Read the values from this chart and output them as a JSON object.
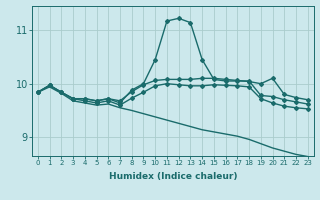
{
  "xlabel": "Humidex (Indice chaleur)",
  "background_color": "#cce8ec",
  "grid_color": "#aacccc",
  "line_color": "#1a6b6b",
  "xlim": [
    -0.5,
    23.5
  ],
  "ylim": [
    8.65,
    11.45
  ],
  "x_ticks": [
    0,
    1,
    2,
    3,
    4,
    5,
    6,
    7,
    8,
    9,
    10,
    11,
    12,
    13,
    14,
    15,
    16,
    17,
    18,
    19,
    20,
    21,
    22,
    23
  ],
  "y_ticks": [
    9,
    10,
    11
  ],
  "lines": [
    {
      "x": [
        0,
        1,
        2,
        3,
        4,
        5,
        6,
        7,
        8,
        9,
        10,
        11,
        12,
        13,
        14,
        15,
        16,
        17,
        18,
        19,
        20,
        21,
        22,
        23
      ],
      "y": [
        9.84,
        9.97,
        9.84,
        9.72,
        9.72,
        9.68,
        9.72,
        9.64,
        9.88,
        10.0,
        10.45,
        11.17,
        11.22,
        11.14,
        10.45,
        10.08,
        10.05,
        10.05,
        10.05,
        9.78,
        9.76,
        9.7,
        9.66,
        9.62
      ],
      "marker": "D",
      "markersize": 2.0,
      "linewidth": 1.0
    },
    {
      "x": [
        0,
        1,
        2,
        3,
        4,
        5,
        6,
        7,
        8,
        9,
        10,
        11,
        12,
        13,
        14,
        15,
        16,
        17,
        18,
        19,
        20,
        21,
        22,
        23
      ],
      "y": [
        9.84,
        9.97,
        9.84,
        9.72,
        9.72,
        9.68,
        9.72,
        9.68,
        9.85,
        9.98,
        10.06,
        10.08,
        10.08,
        10.08,
        10.1,
        10.1,
        10.08,
        10.06,
        10.04,
        10.0,
        10.1,
        9.8,
        9.74,
        9.7
      ],
      "marker": "D",
      "markersize": 2.0,
      "linewidth": 1.0
    },
    {
      "x": [
        0,
        1,
        2,
        3,
        4,
        5,
        6,
        7,
        8,
        9,
        10,
        11,
        12,
        13,
        14,
        15,
        16,
        17,
        18,
        19,
        20,
        21,
        22,
        23
      ],
      "y": [
        9.84,
        9.97,
        9.84,
        9.72,
        9.68,
        9.64,
        9.68,
        9.6,
        9.73,
        9.84,
        9.96,
        10.0,
        9.98,
        9.96,
        9.96,
        9.98,
        9.97,
        9.96,
        9.94,
        9.72,
        9.64,
        9.58,
        9.55,
        9.53
      ],
      "marker": "D",
      "markersize": 2.0,
      "linewidth": 1.0
    },
    {
      "x": [
        0,
        1,
        2,
        3,
        4,
        5,
        6,
        7,
        8,
        9,
        10,
        11,
        12,
        13,
        14,
        15,
        16,
        17,
        18,
        19,
        20,
        21,
        22,
        23
      ],
      "y": [
        9.84,
        9.94,
        9.82,
        9.68,
        9.64,
        9.6,
        9.62,
        9.55,
        9.5,
        9.44,
        9.38,
        9.32,
        9.26,
        9.2,
        9.14,
        9.1,
        9.06,
        9.02,
        8.96,
        8.88,
        8.8,
        8.74,
        8.68,
        8.64
      ],
      "marker": null,
      "markersize": 0,
      "linewidth": 1.0
    }
  ]
}
